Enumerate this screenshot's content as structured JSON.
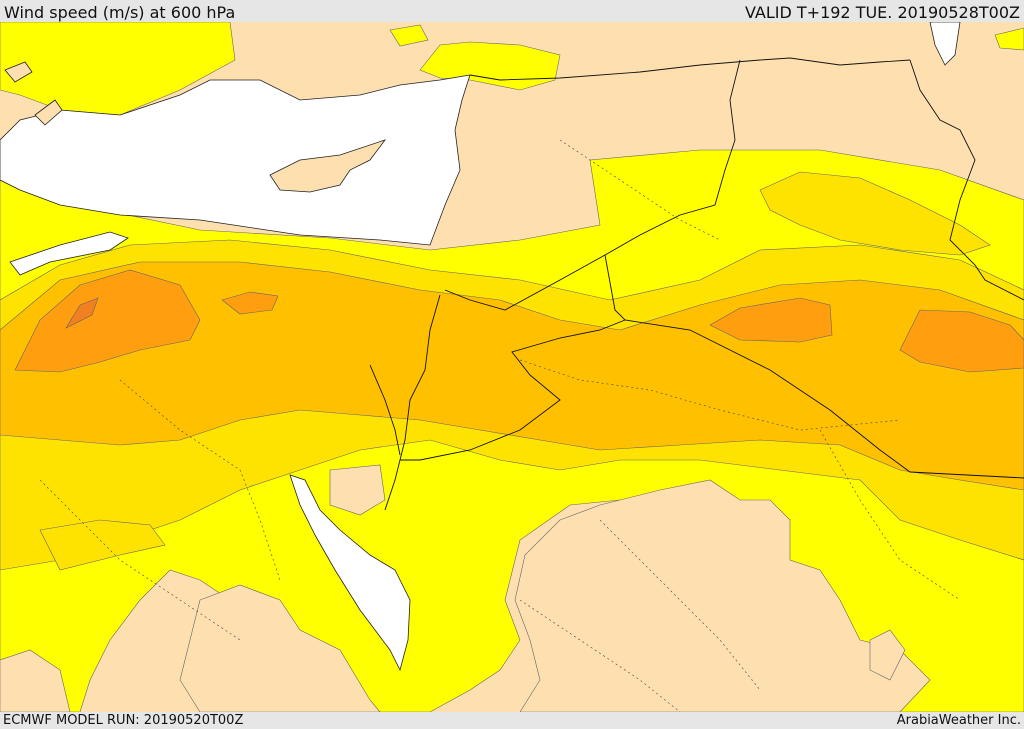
{
  "header": {
    "title": "Wind speed (m/s) at 600 hPa",
    "valid_time": "VALID T+192 TUE. 20190528T00Z"
  },
  "footer": {
    "model_run": "ECMWF MODEL RUN: 20190520T00Z",
    "credit": "ArabiaWeather Inc."
  },
  "map": {
    "type": "filled-contour wind speed map",
    "region": "Eastern Mediterranean / Middle East",
    "colors": {
      "land_low": "#fee0b0",
      "wind_1": "#ffff00",
      "wind_2": "#ffe300",
      "wind_3": "#ffc000",
      "wind_4": "#ff9f10",
      "wind_5": "#f08020",
      "sea": "#ffffff",
      "outline": "#222222"
    }
  }
}
